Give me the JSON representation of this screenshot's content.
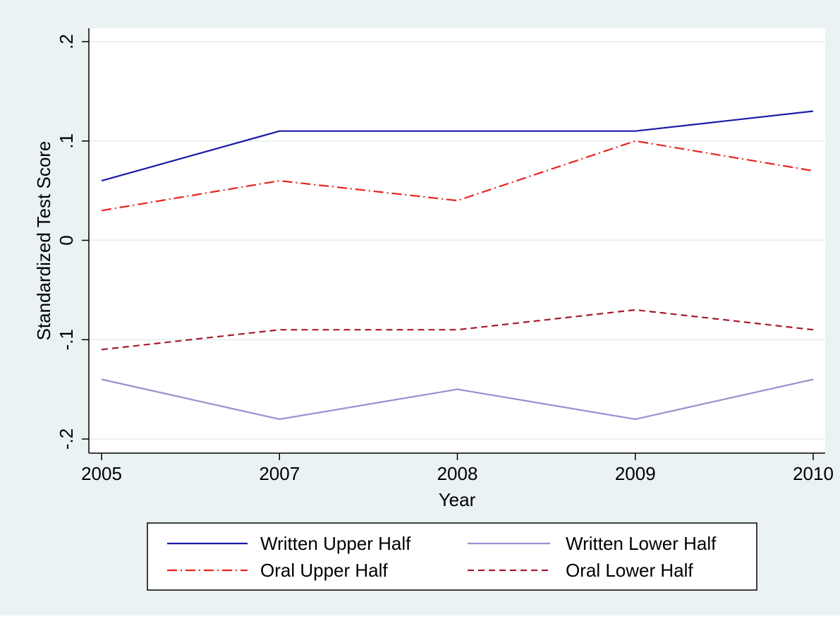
{
  "chart_data": {
    "type": "line",
    "title": "",
    "xlabel": "Year",
    "ylabel": "Standardized Test Score",
    "categories": [
      "2005",
      "2007",
      "2008",
      "2009",
      "2010"
    ],
    "yticks": [
      ".2",
      ".1",
      "0",
      "-.1",
      "-.2"
    ],
    "ytick_values": [
      0.2,
      0.1,
      0,
      -0.1,
      -0.2
    ],
    "ylim": [
      -0.2,
      0.2
    ],
    "grid": true,
    "legend_position": "bottom",
    "colors": {
      "outer_background": "#eaf2f3",
      "plot_background": "#ffffff",
      "grid": "#eaf2f3"
    },
    "series": [
      {
        "name": "Written Upper Half",
        "values": [
          0.06,
          0.11,
          0.11,
          0.11,
          0.13
        ],
        "color": "#1a1aa8",
        "style": "solid"
      },
      {
        "name": "Written Lower Half",
        "values": [
          -0.14,
          -0.18,
          -0.15,
          -0.18,
          -0.14
        ],
        "color": "#9b8fd0",
        "style": "solid"
      },
      {
        "name": "Oral Upper Half",
        "values": [
          0.03,
          0.06,
          0.04,
          0.1,
          0.07
        ],
        "color": "#e8231e",
        "style": "dashdot"
      },
      {
        "name": "Oral Lower Half",
        "values": [
          -0.11,
          -0.09,
          -0.09,
          -0.07,
          -0.09
        ],
        "color": "#a51c30",
        "style": "dash"
      }
    ]
  }
}
